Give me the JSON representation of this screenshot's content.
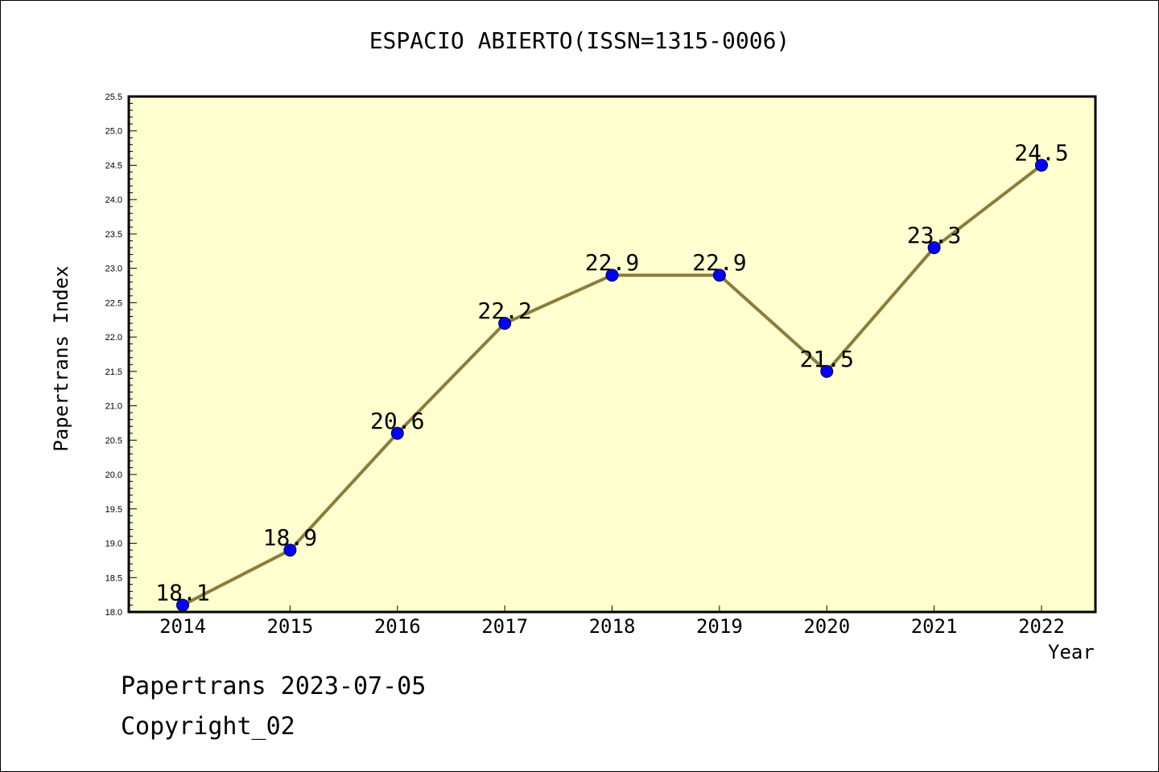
{
  "chart_data": {
    "type": "line",
    "title": "ESPACIO ABIERTO(ISSN=1315-0006)",
    "xlabel": "Year",
    "ylabel": "Papertrans Index",
    "categories": [
      "2014",
      "2015",
      "2016",
      "2017",
      "2018",
      "2019",
      "2020",
      "2021",
      "2022"
    ],
    "series": [
      {
        "values": [
          18.1,
          18.9,
          20.6,
          22.2,
          22.9,
          22.9,
          21.5,
          23.3,
          24.5
        ],
        "labels": [
          "18.1",
          "18.9",
          "20.6",
          "22.2",
          "22.9",
          "22.9",
          "21.5",
          "23.3",
          "24.5"
        ]
      }
    ],
    "ylim": [
      18.0,
      25.5
    ],
    "yticks": [
      "18.0",
      "18.5",
      "19.0",
      "19.5",
      "20.0",
      "20.5",
      "21.0",
      "21.5",
      "22.0",
      "22.5",
      "23.0",
      "23.5",
      "24.0",
      "24.5",
      "25.0",
      "25.5"
    ],
    "grid": false,
    "legend": "none",
    "colors": {
      "plot_background": "#ffffd0",
      "line": "#8b7d3a",
      "marker": "#0000ff",
      "axis": "#000000"
    }
  },
  "footer": {
    "line1": "Papertrans 2023-07-05",
    "line2": "Copyright_02"
  }
}
